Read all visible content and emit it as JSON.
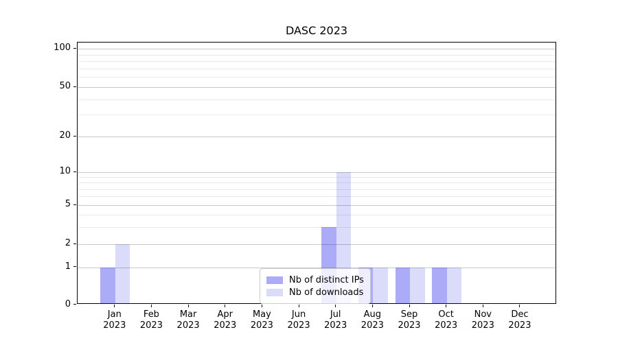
{
  "title": "DASC 2023",
  "chart_data": {
    "type": "bar",
    "title": "DASC 2023",
    "categories": [
      "Jan",
      "Feb",
      "Mar",
      "Apr",
      "May",
      "Jun",
      "Jul",
      "Aug",
      "Sep",
      "Oct",
      "Nov",
      "Dec"
    ],
    "category_year": "2023",
    "series": [
      {
        "name": "Nb of distinct IPs",
        "color": "rgba(0,0,235,0.33)",
        "values": [
          1,
          0,
          0,
          0,
          0,
          0,
          3,
          1,
          1,
          1,
          0,
          0
        ]
      },
      {
        "name": "Nb of downloads",
        "color": "rgba(0,0,220,0.14)",
        "values": [
          2,
          0,
          0,
          0,
          0,
          0,
          10,
          1,
          1,
          1,
          0,
          0
        ]
      }
    ],
    "yaxis": {
      "scale": "log-like (0 baseline shown)",
      "major_ticks": [
        0,
        1,
        2,
        5,
        10,
        20,
        50,
        100
      ],
      "minor_ticks": [
        3,
        4,
        6,
        7,
        8,
        9,
        30,
        40,
        60,
        70,
        80,
        90
      ],
      "ylim": [
        0,
        110
      ]
    },
    "xlabel": "",
    "ylabel": "",
    "grid": "both",
    "legend": {
      "position": "lower center",
      "entries": [
        "Nb of distinct IPs",
        "Nb of downloads"
      ]
    },
    "colors": {
      "major_grid": "#c8c8c8",
      "minor_grid": "#e9e9e9",
      "spine": "#000000",
      "background": "#ffffff"
    }
  }
}
